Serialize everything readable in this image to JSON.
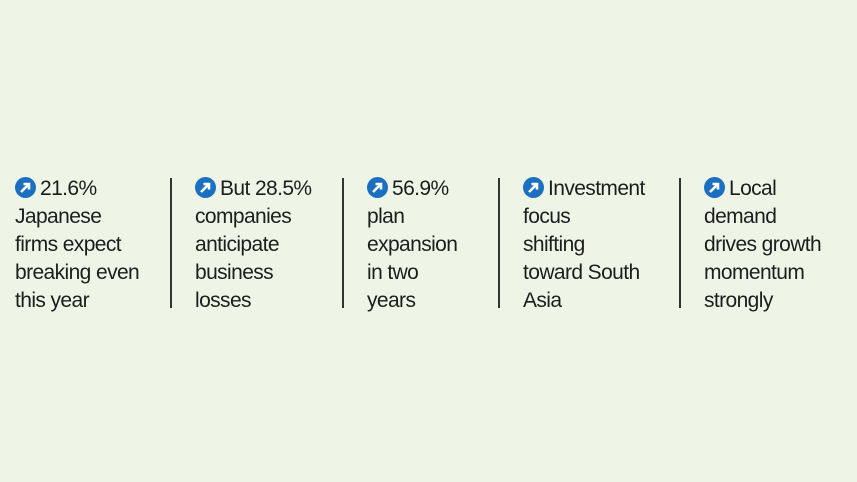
{
  "items": [
    {
      "lines": [
        "21.6%",
        "Japanese",
        "firms expect",
        "breaking even",
        "this year"
      ]
    },
    {
      "lines": [
        "But 28.5%",
        "companies",
        "anticipate",
        "business",
        "losses"
      ]
    },
    {
      "lines": [
        "56.9%",
        "plan",
        "expansion",
        "in two",
        "years"
      ]
    },
    {
      "lines": [
        "Investment",
        "focus",
        "shifting",
        "toward South",
        "Asia"
      ]
    },
    {
      "lines": [
        "Local",
        "demand",
        "drives growth",
        "momentum",
        "strongly"
      ]
    }
  ]
}
